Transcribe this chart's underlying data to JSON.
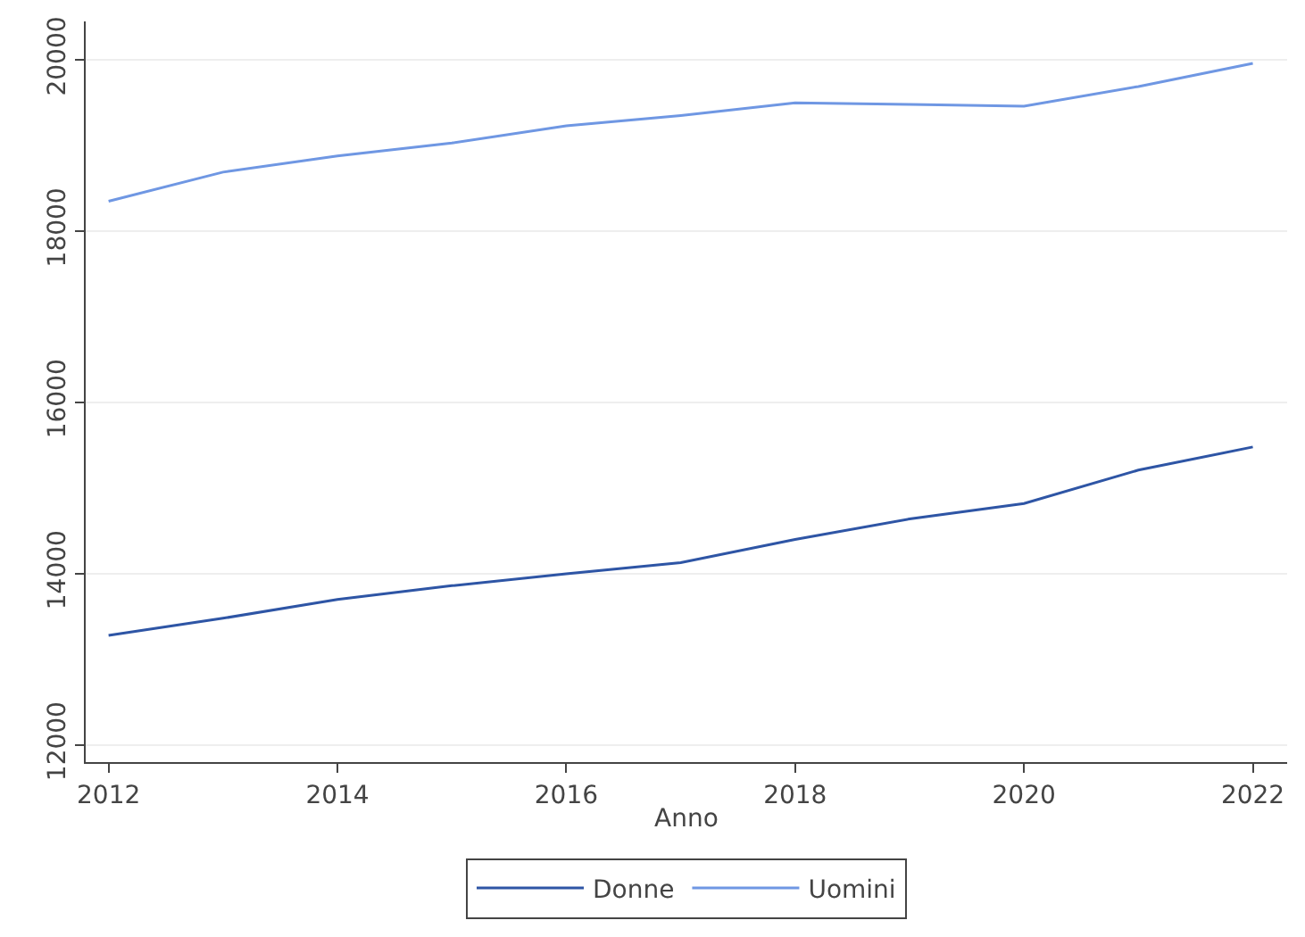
{
  "chart_data": {
    "type": "line",
    "xlabel": "Anno",
    "x": [
      2012,
      2013,
      2014,
      2015,
      2016,
      2017,
      2018,
      2019,
      2020,
      2021,
      2022
    ],
    "series": [
      {
        "name": "Donne",
        "color": "#2e55a5",
        "values": [
          13280,
          13480,
          13700,
          13860,
          14000,
          14130,
          14400,
          14640,
          14820,
          15210,
          15480
        ]
      },
      {
        "name": "Uomini",
        "color": "#6f97e3",
        "values": [
          18350,
          18690,
          18880,
          19030,
          19230,
          19350,
          19500,
          19480,
          19460,
          19690,
          19960
        ]
      }
    ],
    "xlim": [
      2011.8,
      2022.3
    ],
    "xticks": [
      2012,
      2014,
      2016,
      2018,
      2020,
      2022
    ],
    "ylim": [
      11800,
      20450
    ],
    "yticks": [
      12000,
      14000,
      16000,
      18000,
      20000
    ],
    "grid": "y",
    "legend": "bottom",
    "marker": "none",
    "line_style": "solid"
  }
}
